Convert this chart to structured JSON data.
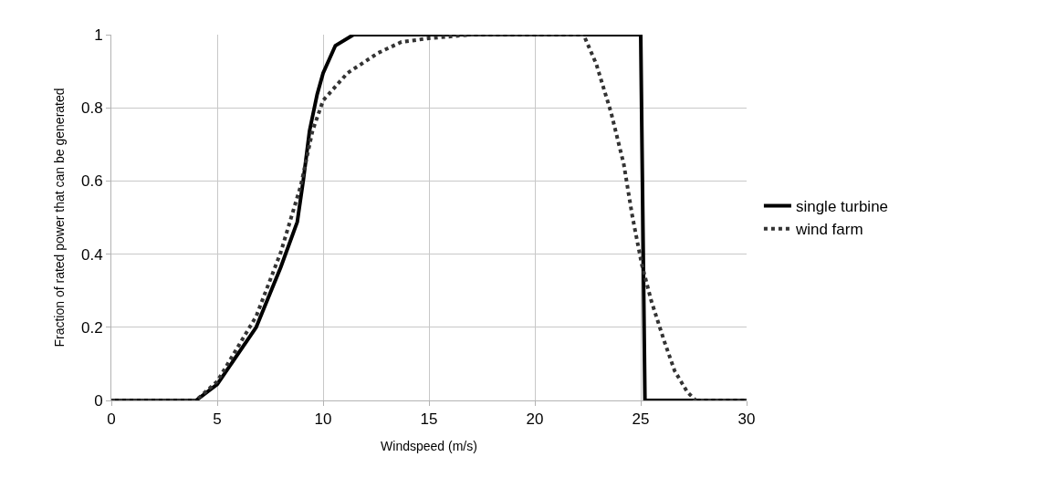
{
  "chart_data": {
    "type": "line",
    "xlabel": "Windspeed (m/s)",
    "ylabel": "Fraction of rated power that can be generated",
    "xlim": [
      0,
      30
    ],
    "xticks": [
      0,
      5,
      10,
      15,
      20,
      25,
      30
    ],
    "ylim": [
      0,
      1
    ],
    "yticks": [
      0,
      0.2,
      0.4,
      0.6,
      0.8,
      1
    ],
    "grid": true,
    "legend": "right",
    "marker": "none",
    "series": [
      {
        "name": "single turbine",
        "color": "#000000",
        "line_style": "solid",
        "x": [
          0,
          4,
          5,
          6.84,
          8,
          8.78,
          9.07,
          9.36,
          9.72,
          10,
          10.58,
          11.44,
          25,
          25.2,
          30
        ],
        "values": [
          0,
          0,
          0.044,
          0.2,
          0.364,
          0.488,
          0.604,
          0.737,
          0.837,
          0.895,
          0.97,
          1,
          1,
          0,
          0
        ]
      },
      {
        "name": "wind farm",
        "color": "#333333",
        "line_style": "dotted",
        "x": [
          0,
          4,
          5,
          6.84,
          8,
          8.95,
          9.5,
          10,
          11.15,
          12.6,
          13.7,
          15,
          17,
          22.3,
          22.9,
          23.6,
          24.2,
          24.6,
          25.05,
          25.5,
          26.1,
          26.6,
          27.2,
          27.6,
          30
        ],
        "values": [
          0,
          0,
          0.052,
          0.23,
          0.405,
          0.588,
          0.737,
          0.82,
          0.895,
          0.95,
          0.98,
          0.99,
          1,
          1,
          0.92,
          0.787,
          0.646,
          0.505,
          0.372,
          0.272,
          0.164,
          0.081,
          0.023,
          0,
          0
        ]
      }
    ]
  }
}
